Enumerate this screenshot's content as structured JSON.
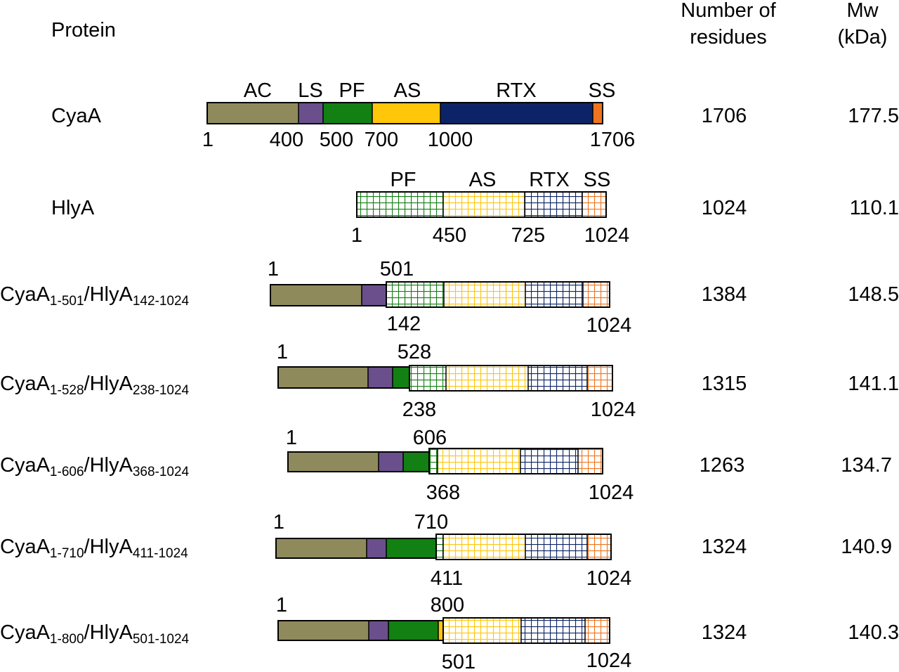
{
  "headers": {
    "protein": "Protein",
    "residues_line1": "Number of",
    "residues_line2": "residues",
    "mw_line1": "Mw",
    "mw_line2": "(kDa)"
  },
  "colors": {
    "AC": "#8f8a5c",
    "LS": "#6a4f8c",
    "PF": "#128012",
    "AS": "#ffc60a",
    "RTX": "#0c2467",
    "SS": "#ee7420",
    "outline": "#000000"
  },
  "rows": [
    {
      "name": "CyaA",
      "residues": "1706",
      "mw": "177.5",
      "domain_labels": [
        "AC",
        "LS",
        "PF",
        "AS",
        "RTX",
        "SS"
      ],
      "segments": [
        {
          "domain": "AC",
          "from": 1,
          "to": 400,
          "pattern": "solid"
        },
        {
          "domain": "LS",
          "from": 400,
          "to": 500,
          "pattern": "solid"
        },
        {
          "domain": "PF",
          "from": 500,
          "to": 700,
          "pattern": "solid"
        },
        {
          "domain": "AS",
          "from": 700,
          "to": 1000,
          "pattern": "solid"
        },
        {
          "domain": "RTX",
          "from": 1000,
          "to": 1660,
          "pattern": "solid"
        },
        {
          "domain": "SS",
          "from": 1660,
          "to": 1706,
          "pattern": "solid"
        }
      ],
      "ticks": [
        "1",
        "400",
        "500",
        "700",
        "1000",
        "1706"
      ]
    },
    {
      "name": "HlyA",
      "residues": "1024",
      "mw": "110.1",
      "domain_labels": [
        "PF",
        "AS",
        "RTX",
        "SS"
      ],
      "segments": [
        {
          "domain": "PF",
          "from": 1,
          "to": 450,
          "pattern": "grid"
        },
        {
          "domain": "AS",
          "from": 450,
          "to": 725,
          "pattern": "grid"
        },
        {
          "domain": "RTX",
          "from": 725,
          "to": 924,
          "pattern": "grid"
        },
        {
          "domain": "SS",
          "from": 924,
          "to": 1024,
          "pattern": "grid"
        }
      ],
      "ticks": [
        "1",
        "450",
        "725",
        "1024"
      ]
    },
    {
      "name": "CyaA",
      "sub1": "1-501",
      "mid": "/HlyA",
      "sub2": "142-1024",
      "residues": "1384",
      "mw": "148.5",
      "ticks_top": [
        "1",
        "501"
      ],
      "ticks_bottom": [
        "142",
        "1024"
      ]
    },
    {
      "name": "CyaA",
      "sub1": "1-528",
      "mid": "/HlyA",
      "sub2": "238-1024",
      "residues": "1315",
      "mw": "141.1",
      "ticks_top": [
        "1",
        "528"
      ],
      "ticks_bottom": [
        "238",
        "1024"
      ]
    },
    {
      "name": "CyaA",
      "sub1": "1-606",
      "mid": "/HlyA",
      "sub2": "368-1024",
      "residues": "1263",
      "mw": "134.7",
      "ticks_top": [
        "1",
        "606"
      ],
      "ticks_bottom": [
        "368",
        "1024"
      ]
    },
    {
      "name": "CyaA",
      "sub1": "1-710",
      "mid": "/HlyA",
      "sub2": "411-1024",
      "residues": "1324",
      "mw": "140.9",
      "ticks_top": [
        "1",
        "710"
      ],
      "ticks_bottom": [
        "411",
        "1024"
      ]
    },
    {
      "name": "CyaA",
      "sub1": "1-800",
      "mid": "/HlyA",
      "sub2": "501-1024",
      "residues": "1324",
      "mw": "140.3",
      "ticks_top": [
        "1",
        "800"
      ],
      "ticks_bottom": [
        "501",
        "1024"
      ]
    }
  ]
}
